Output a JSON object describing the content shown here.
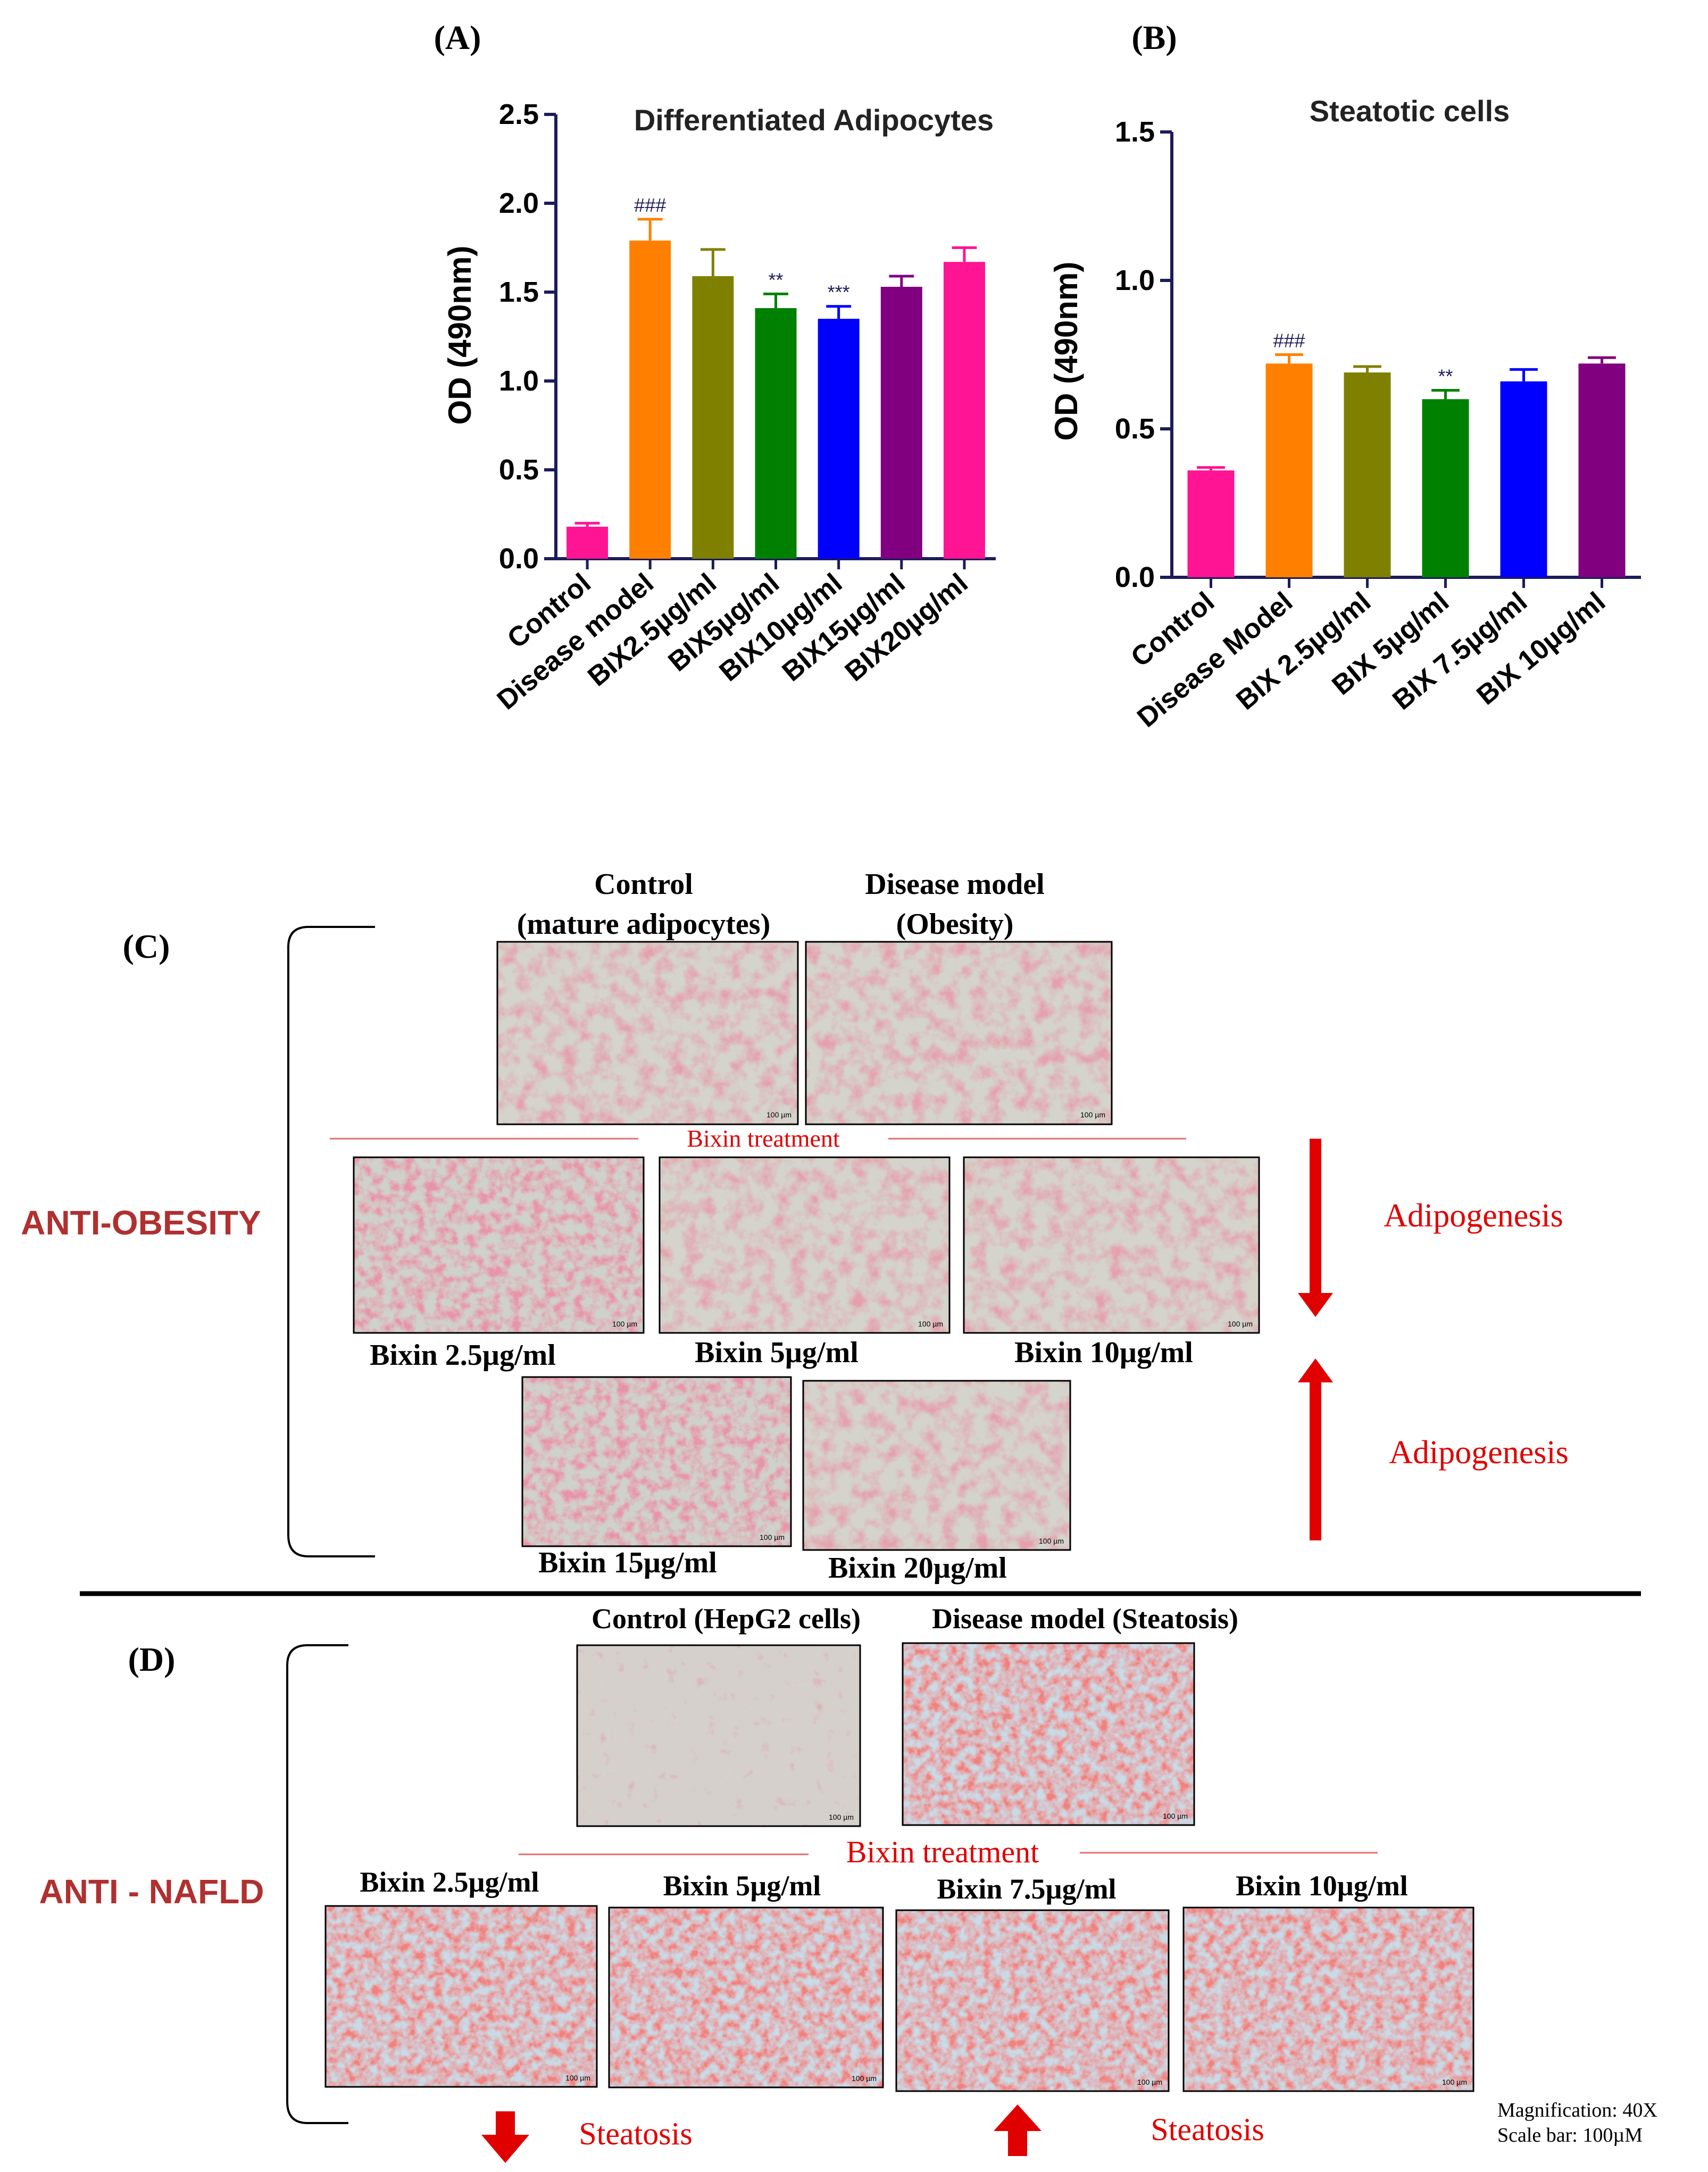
{
  "panels": {
    "A": "(A)",
    "B": "(B)",
    "C": "(C)",
    "D": "(D)"
  },
  "chart_data": [
    {
      "type": "bar",
      "title": "Differentiated Adipocytes",
      "ylabel": "OD (490nm)",
      "xlabel": "",
      "ylim": [
        0,
        2.5
      ],
      "yticks": [
        "0.0",
        "0.5",
        "1.0",
        "1.5",
        "2.0",
        "2.5"
      ],
      "categories": [
        "Control",
        "Disease model",
        "BIX2.5µg/ml",
        "BIX5µg/ml",
        "BIX10µg/ml",
        "BIX15µg/ml",
        "BIX20µg/ml"
      ],
      "values": [
        0.18,
        1.79,
        1.59,
        1.41,
        1.35,
        1.53,
        1.67
      ],
      "errors": [
        0.02,
        0.12,
        0.15,
        0.08,
        0.07,
        0.06,
        0.08
      ],
      "annotations": [
        "",
        "###",
        "",
        "**",
        "***",
        "",
        ""
      ],
      "colors": [
        "#ff1493",
        "#ff8000",
        "#808000",
        "#008000",
        "#0000ff",
        "#800080",
        "#ff1493"
      ],
      "grid": false
    },
    {
      "type": "bar",
      "title": "Steatotic cells",
      "ylabel": "OD (490nm)",
      "xlabel": "",
      "ylim": [
        0,
        1.5
      ],
      "yticks": [
        "0.0",
        "0.5",
        "1.0",
        "1.5"
      ],
      "categories": [
        "Control",
        "Disease Model",
        "BIX 2.5µg/ml",
        "BIX 5µg/ml",
        "BIX 7.5µg/ml",
        "BIX 10µg/ml"
      ],
      "values": [
        0.36,
        0.72,
        0.69,
        0.6,
        0.66,
        0.72
      ],
      "errors": [
        0.01,
        0.03,
        0.02,
        0.03,
        0.04,
        0.02
      ],
      "annotations": [
        "",
        "###",
        "",
        "**",
        "",
        ""
      ],
      "colors": [
        "#ff1493",
        "#ff8000",
        "#808000",
        "#008000",
        "#0000ff",
        "#800080"
      ],
      "grid": false
    }
  ],
  "sectionC": {
    "side_label": "ANTI-OBESITY",
    "top_captions": [
      "Control",
      "(mature adipocytes)",
      "Disease model",
      "(Obesity)"
    ],
    "treatment_label": "Bixin treatment",
    "row2_captions": [
      "Bixin 2.5µg/ml",
      "Bixin 5µg/ml",
      "Bixin 10µg/ml"
    ],
    "row3_captions": [
      "Bixin 15µg/ml",
      "Bixin 20µg/ml"
    ],
    "arrow_down_label": "Adipogenesis",
    "arrow_up_label": "Adipogenesis",
    "scale_text": "100 µm"
  },
  "sectionD": {
    "side_label": "ANTI - NAFLD",
    "top_captions": [
      "Control (HepG2 cells)",
      "Disease model (Steatosis)"
    ],
    "treatment_label": "Bixin treatment",
    "row_captions": [
      "Bixin 2.5µg/ml",
      "Bixin 5µg/ml",
      "Bixin 7.5µg/ml",
      "Bixin 10µg/ml"
    ],
    "arrow_down_label": "Steatosis",
    "arrow_up_label": "Steatosis",
    "magnification": "Magnification: 40X",
    "scalebar": "Scale bar:  100µM",
    "scale_text": "100 µm"
  },
  "colors": {
    "red_label": "#e00000",
    "section_label": "#b03030",
    "axis": "#1c1c5a"
  }
}
